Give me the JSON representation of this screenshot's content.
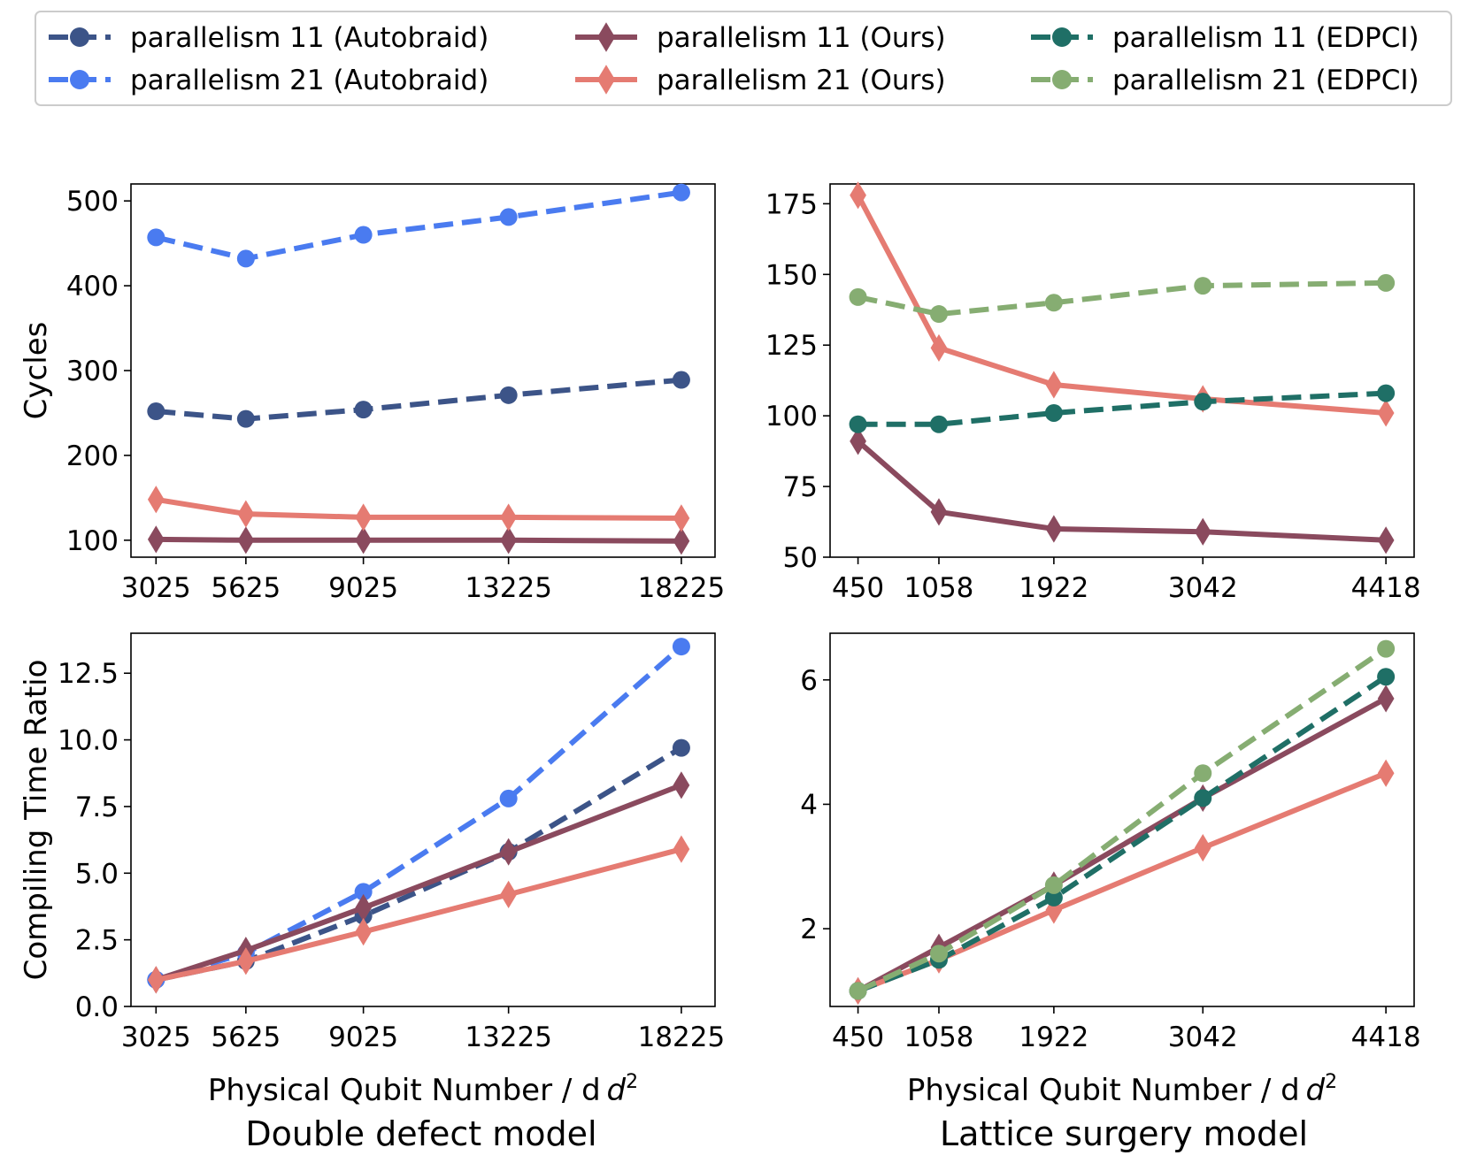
{
  "legend": {
    "entries": [
      {
        "label": "parallelism 11 (Autobraid)",
        "color": "#3c5488",
        "marker": "circle",
        "dash": true
      },
      {
        "label": "parallelism 21 (Autobraid)",
        "color": "#4a7bf0",
        "marker": "circle",
        "dash": true
      },
      {
        "label": "parallelism 11 (Ours)",
        "color": "#8a4a5e",
        "marker": "diamond",
        "dash": false
      },
      {
        "label": "parallelism 21 (Ours)",
        "color": "#e57b72",
        "marker": "diamond",
        "dash": false
      },
      {
        "label": "parallelism 11 (EDPCI)",
        "color": "#1f6f66",
        "marker": "circle",
        "dash": true
      },
      {
        "label": "parallelism 21 (EDPCI)",
        "color": "#86ad72",
        "marker": "circle",
        "dash": true
      }
    ]
  },
  "column_titles": [
    "Double defect model",
    "Lattice surgery model"
  ],
  "chart_data": [
    {
      "type": "line",
      "panel": "top-left",
      "xlabel": "",
      "ylabel": "Cycles",
      "categories": [
        "3025",
        "5625",
        "9025",
        "13225",
        "18225"
      ],
      "x": [
        3025,
        5625,
        9025,
        13225,
        18225
      ],
      "xlim": [
        2300,
        19200
      ],
      "ylim": [
        80,
        520
      ],
      "yticks": [
        100,
        200,
        300,
        400,
        500
      ],
      "ytick_labels": [
        "100",
        "200",
        "300",
        "400",
        "500"
      ],
      "series": [
        {
          "name": "parallelism 11 (Autobraid)",
          "values": [
            252,
            243,
            254,
            271,
            289
          ]
        },
        {
          "name": "parallelism 21 (Autobraid)",
          "values": [
            457,
            432,
            460,
            481,
            510
          ]
        },
        {
          "name": "parallelism 11 (Ours)",
          "values": [
            101,
            100,
            100,
            100,
            99
          ]
        },
        {
          "name": "parallelism 21 (Ours)",
          "values": [
            148,
            131,
            127,
            127,
            126
          ]
        }
      ]
    },
    {
      "type": "line",
      "panel": "top-right",
      "xlabel": "",
      "ylabel": "",
      "categories": [
        "450",
        "1058",
        "1922",
        "3042",
        "4418"
      ],
      "x": [
        450,
        1058,
        1922,
        3042,
        4418
      ],
      "xlim": [
        240,
        4630
      ],
      "ylim": [
        50,
        182
      ],
      "yticks": [
        50,
        75,
        100,
        125,
        150,
        175
      ],
      "ytick_labels": [
        "50",
        "75",
        "100",
        "125",
        "150",
        "175"
      ],
      "series": [
        {
          "name": "parallelism 11 (Ours)",
          "values": [
            91,
            66,
            60,
            59,
            56
          ]
        },
        {
          "name": "parallelism 21 (Ours)",
          "values": [
            178,
            124,
            111,
            106,
            101
          ]
        },
        {
          "name": "parallelism 11 (EDPCI)",
          "values": [
            97,
            97,
            101,
            105,
            108
          ]
        },
        {
          "name": "parallelism 21 (EDPCI)",
          "values": [
            142,
            136,
            140,
            146,
            147
          ]
        }
      ]
    },
    {
      "type": "line",
      "panel": "bottom-left",
      "xlabel": "Physical Qubit Number / d",
      "xlabel_sup": "2",
      "ylabel": "Compiling Time Ratio",
      "categories": [
        "3025",
        "5625",
        "9025",
        "13225",
        "18225"
      ],
      "x": [
        3025,
        5625,
        9025,
        13225,
        18225
      ],
      "xlim": [
        2300,
        19200
      ],
      "ylim": [
        0,
        14.0
      ],
      "yticks": [
        0,
        2.5,
        5.0,
        7.5,
        10.0,
        12.5
      ],
      "ytick_labels": [
        "0.0",
        "2.5",
        "5.0",
        "7.5",
        "10.0",
        "12.5"
      ],
      "series": [
        {
          "name": "parallelism 11 (Autobraid)",
          "values": [
            1.0,
            1.7,
            3.4,
            5.8,
            9.7
          ]
        },
        {
          "name": "parallelism 21 (Autobraid)",
          "values": [
            1.0,
            2.0,
            4.3,
            7.8,
            13.5
          ]
        },
        {
          "name": "parallelism 11 (Ours)",
          "values": [
            1.0,
            2.1,
            3.7,
            5.8,
            8.3
          ]
        },
        {
          "name": "parallelism 21 (Ours)",
          "values": [
            1.0,
            1.7,
            2.8,
            4.2,
            5.9
          ]
        }
      ]
    },
    {
      "type": "line",
      "panel": "bottom-right",
      "xlabel": "Physical Qubit Number / d",
      "xlabel_sup": "2",
      "ylabel": "",
      "categories": [
        "450",
        "1058",
        "1922",
        "3042",
        "4418"
      ],
      "x": [
        450,
        1058,
        1922,
        3042,
        4418
      ],
      "xlim": [
        240,
        4630
      ],
      "ylim": [
        0.75,
        6.75
      ],
      "yticks": [
        2,
        4,
        6
      ],
      "ytick_labels": [
        "2",
        "4",
        "6"
      ],
      "series": [
        {
          "name": "parallelism 11 (Ours)",
          "values": [
            1.0,
            1.7,
            2.7,
            4.1,
            5.7
          ]
        },
        {
          "name": "parallelism 21 (Ours)",
          "values": [
            1.0,
            1.5,
            2.3,
            3.3,
            4.5
          ]
        },
        {
          "name": "parallelism 11 (EDPCI)",
          "values": [
            1.0,
            1.5,
            2.5,
            4.1,
            6.05
          ]
        },
        {
          "name": "parallelism 21 (EDPCI)",
          "values": [
            1.0,
            1.6,
            2.7,
            4.5,
            6.5
          ]
        }
      ]
    }
  ]
}
